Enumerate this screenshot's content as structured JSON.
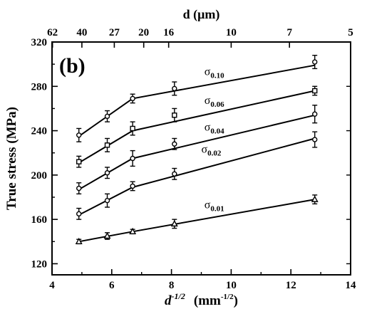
{
  "chart_data": {
    "type": "line",
    "panel_label": "(b)",
    "xlabel_base": "d",
    "xlabel_sup": "-1/2",
    "xlabel_unit": "(mm",
    "xlabel_unit_sup": "-1/2",
    "xlabel_unit_close": ")",
    "x2label": "d (μm)",
    "ylabel": "True stress (MPa)",
    "xlim": [
      4,
      14
    ],
    "ylim": [
      110,
      320
    ],
    "x_ticks": [
      4,
      6,
      8,
      10,
      12,
      14
    ],
    "y_ticks": [
      120,
      160,
      200,
      240,
      280,
      320
    ],
    "x_tick_labels": [
      "4",
      "6",
      "8",
      "10",
      "12",
      "14"
    ],
    "y_tick_labels": [
      "120",
      "160",
      "200",
      "240",
      "280",
      "320"
    ],
    "top_ticks": [
      {
        "label": "62",
        "x": 4.016
      },
      {
        "label": "40",
        "x": 5.0
      },
      {
        "label": "27",
        "x": 6.086
      },
      {
        "label": "20",
        "x": 7.071
      },
      {
        "label": "16",
        "x": 7.906
      },
      {
        "label": "10",
        "x": 10.0
      },
      {
        "label": "7",
        "x": 11.952
      },
      {
        "label": "5",
        "x": 14.142
      }
    ],
    "x": [
      4.9,
      5.85,
      6.7,
      8.1,
      12.8
    ],
    "series": [
      {
        "name": "σ",
        "sub": "0.10",
        "marker": "circle",
        "values": [
          236,
          253,
          269,
          278,
          302
        ],
        "errors": [
          6,
          5,
          4,
          6,
          6
        ],
        "fit": [
          [
            4.9,
            235
          ],
          [
            6.7,
            269
          ],
          [
            12.8,
            299
          ]
        ],
        "label_pos": [
          9.1,
          290
        ]
      },
      {
        "name": "σ",
        "sub": "0.06",
        "marker": "square",
        "values": [
          212,
          227,
          242,
          254,
          276
        ],
        "errors": [
          5,
          6,
          6,
          6,
          4
        ],
        "fit": [
          [
            4.9,
            211
          ],
          [
            6.7,
            240
          ],
          [
            12.8,
            276
          ]
        ],
        "label_pos": [
          9.1,
          264
        ]
      },
      {
        "name": "σ",
        "sub": "0.04",
        "marker": "circle",
        "values": [
          188,
          202,
          215,
          228,
          255
        ],
        "errors": [
          5,
          5,
          7,
          5,
          8
        ],
        "fit": [
          [
            4.9,
            187
          ],
          [
            6.7,
            215
          ],
          [
            12.8,
            254
          ]
        ],
        "label_pos": [
          9.1,
          240
        ]
      },
      {
        "name": "σ",
        "sub": "0.02",
        "marker": "circle",
        "values": [
          165,
          177,
          190,
          201,
          232
        ],
        "errors": [
          5,
          6,
          4,
          5,
          7
        ],
        "fit": [
          [
            4.9,
            164
          ],
          [
            6.7,
            189
          ],
          [
            12.8,
            233
          ]
        ],
        "label_pos": [
          9.0,
          220
        ]
      },
      {
        "name": "σ",
        "sub": "0.01",
        "marker": "triangle",
        "values": [
          140,
          145,
          149,
          156,
          178
        ],
        "errors": [
          2,
          3,
          2,
          4,
          4
        ],
        "fit": [
          [
            4.9,
            140
          ],
          [
            6.7,
            149
          ],
          [
            12.8,
            178
          ]
        ],
        "label_pos": [
          9.1,
          170
        ]
      }
    ]
  }
}
